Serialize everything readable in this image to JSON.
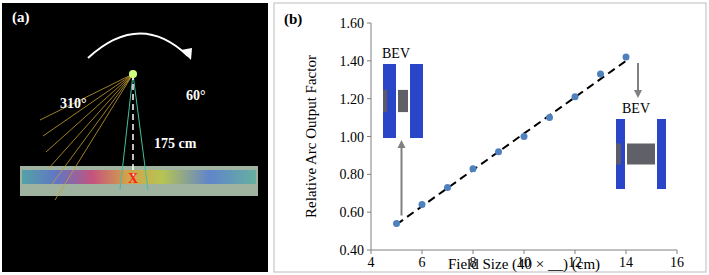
{
  "panel_a": {
    "label": "(a)",
    "start_angle": "310°",
    "end_angle": "60°",
    "distance": "175 cm",
    "isocenter": "X"
  },
  "chart_data": {
    "type": "scatter",
    "title": "(b)",
    "x_label": "Field Size (40 × __) (cm)",
    "y_label": "Relative Arc Output Factor",
    "series": [
      {
        "type": "scatter",
        "color": "#4f81bd",
        "marker": "circle",
        "x": [
          5,
          6,
          7,
          8,
          9,
          10,
          11,
          12,
          13,
          14
        ],
        "values": [
          0.54,
          0.64,
          0.73,
          0.83,
          0.92,
          1.0,
          1.1,
          1.21,
          1.33,
          1.42
        ]
      },
      {
        "type": "line",
        "color": "#000000",
        "line_style": "dashed",
        "x": [
          5,
          14
        ],
        "values": [
          0.535,
          1.4
        ]
      }
    ],
    "annotations": [
      "BEV",
      "BEV"
    ],
    "xlim": [
      4,
      16
    ],
    "xticks": [
      4,
      6,
      8,
      10,
      12,
      14,
      16
    ],
    "ylim": [
      0.4,
      1.6
    ],
    "yticks": [
      {
        "value": 0.4,
        "label": "0.40"
      },
      {
        "value": 0.6,
        "label": "0.60"
      },
      {
        "value": 0.8,
        "label": "0.80"
      },
      {
        "value": 1.0,
        "label": "1.00"
      },
      {
        "value": 1.2,
        "label": "1.20"
      },
      {
        "value": 1.4,
        "label": "1.40"
      },
      {
        "value": 1.6,
        "label": "1.60"
      }
    ],
    "grid": false
  }
}
